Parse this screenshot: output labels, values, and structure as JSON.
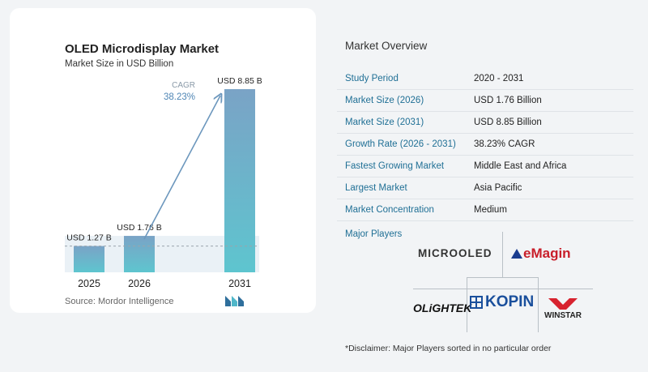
{
  "chart_data": {
    "type": "bar",
    "title": "OLED Microdisplay Market",
    "subtitle": "Market Size in USD Billion",
    "categories": [
      "2025",
      "2026",
      "2031"
    ],
    "values": [
      1.27,
      1.76,
      8.85
    ],
    "value_labels": [
      "USD 1.27 B",
      "USD 1.76 B",
      "USD 8.85 B"
    ],
    "ylim": [
      0,
      8.85
    ],
    "grid": false,
    "colors": {
      "bar_top": "#7aa3c6",
      "bar_bottom": "#5ec5cf",
      "arrow": "#6c97bd",
      "baseline": "#9aa4ad"
    },
    "cagr": {
      "label": "CAGR",
      "value": "38.23%"
    }
  },
  "source": "Source:  Mordor Intelligence",
  "overview": {
    "title": "Market Overview",
    "rows": [
      {
        "label": "Study Period",
        "value": "2020 - 2031"
      },
      {
        "label": "Market Size (2026)",
        "value": "USD 1.76 Billion"
      },
      {
        "label": "Market Size (2031)",
        "value": "USD 8.85 Billion"
      },
      {
        "label": "Growth Rate (2026 - 2031)",
        "value": "38.23% CAGR"
      },
      {
        "label": "Fastest Growing Market",
        "value": "Middle East and Africa"
      },
      {
        "label": "Largest Market",
        "value": "Asia Pacific"
      },
      {
        "label": "Market Concentration",
        "value": "Medium"
      }
    ]
  },
  "players": {
    "title": "Major Players",
    "logos": [
      "MICROOLED",
      "eMagin",
      "OLiGHTEK",
      "KOPIN",
      "WINSTAR"
    ]
  },
  "disclaimer": "*Disclaimer: Major Players sorted in no particular order"
}
